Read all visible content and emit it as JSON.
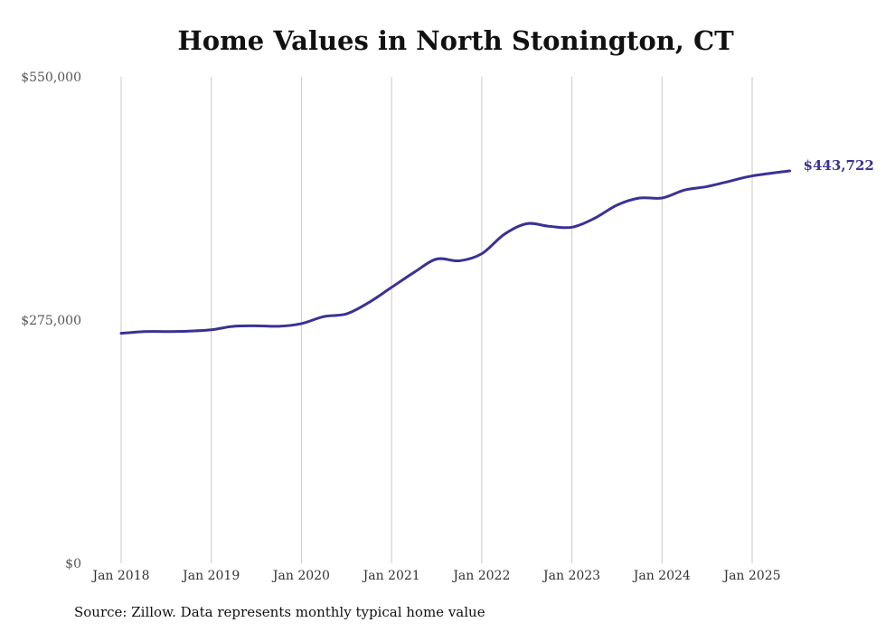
{
  "chart_data": {
    "type": "line",
    "title": "Home Values in North Stonington, CT",
    "source": "Source: Zillow. Data represents monthly typical home value",
    "end_label": "$443,722",
    "line_color": "#3a3195",
    "grid": "vertical",
    "ylim": [
      0,
      550000
    ],
    "y_ticks": [
      {
        "value": 0,
        "label": "$0"
      },
      {
        "value": 275000,
        "label": "$275,000"
      },
      {
        "value": 550000,
        "label": "$550,000"
      }
    ],
    "x_ticks": [
      {
        "date": "2018-01",
        "label": "Jan 2018"
      },
      {
        "date": "2019-01",
        "label": "Jan 2019"
      },
      {
        "date": "2020-01",
        "label": "Jan 2020"
      },
      {
        "date": "2021-01",
        "label": "Jan 2021"
      },
      {
        "date": "2022-01",
        "label": "Jan 2022"
      },
      {
        "date": "2023-01",
        "label": "Jan 2023"
      },
      {
        "date": "2024-01",
        "label": "Jan 2024"
      },
      {
        "date": "2025-01",
        "label": "Jan 2025"
      }
    ],
    "series": [
      {
        "points": [
          [
            "2018-01",
            260000
          ],
          [
            "2018-04",
            262000
          ],
          [
            "2018-07",
            262000
          ],
          [
            "2018-10",
            262500
          ],
          [
            "2019-01",
            264000
          ],
          [
            "2019-04",
            268000
          ],
          [
            "2019-07",
            268500
          ],
          [
            "2019-10",
            268000
          ],
          [
            "2020-01",
            271000
          ],
          [
            "2020-04",
            279000
          ],
          [
            "2020-07",
            282000
          ],
          [
            "2020-10",
            295000
          ],
          [
            "2021-01",
            312000
          ],
          [
            "2021-04",
            329000
          ],
          [
            "2021-07",
            344000
          ],
          [
            "2021-10",
            342000
          ],
          [
            "2022-01",
            350000
          ],
          [
            "2022-04",
            372000
          ],
          [
            "2022-07",
            384000
          ],
          [
            "2022-10",
            381000
          ],
          [
            "2023-01",
            380000
          ],
          [
            "2023-04",
            390000
          ],
          [
            "2023-07",
            405000
          ],
          [
            "2023-10",
            413000
          ],
          [
            "2024-01",
            413000
          ],
          [
            "2024-04",
            422000
          ],
          [
            "2024-07",
            426000
          ],
          [
            "2024-10",
            432000
          ],
          [
            "2025-01",
            438000
          ],
          [
            "2025-06",
            443722
          ]
        ]
      }
    ]
  }
}
